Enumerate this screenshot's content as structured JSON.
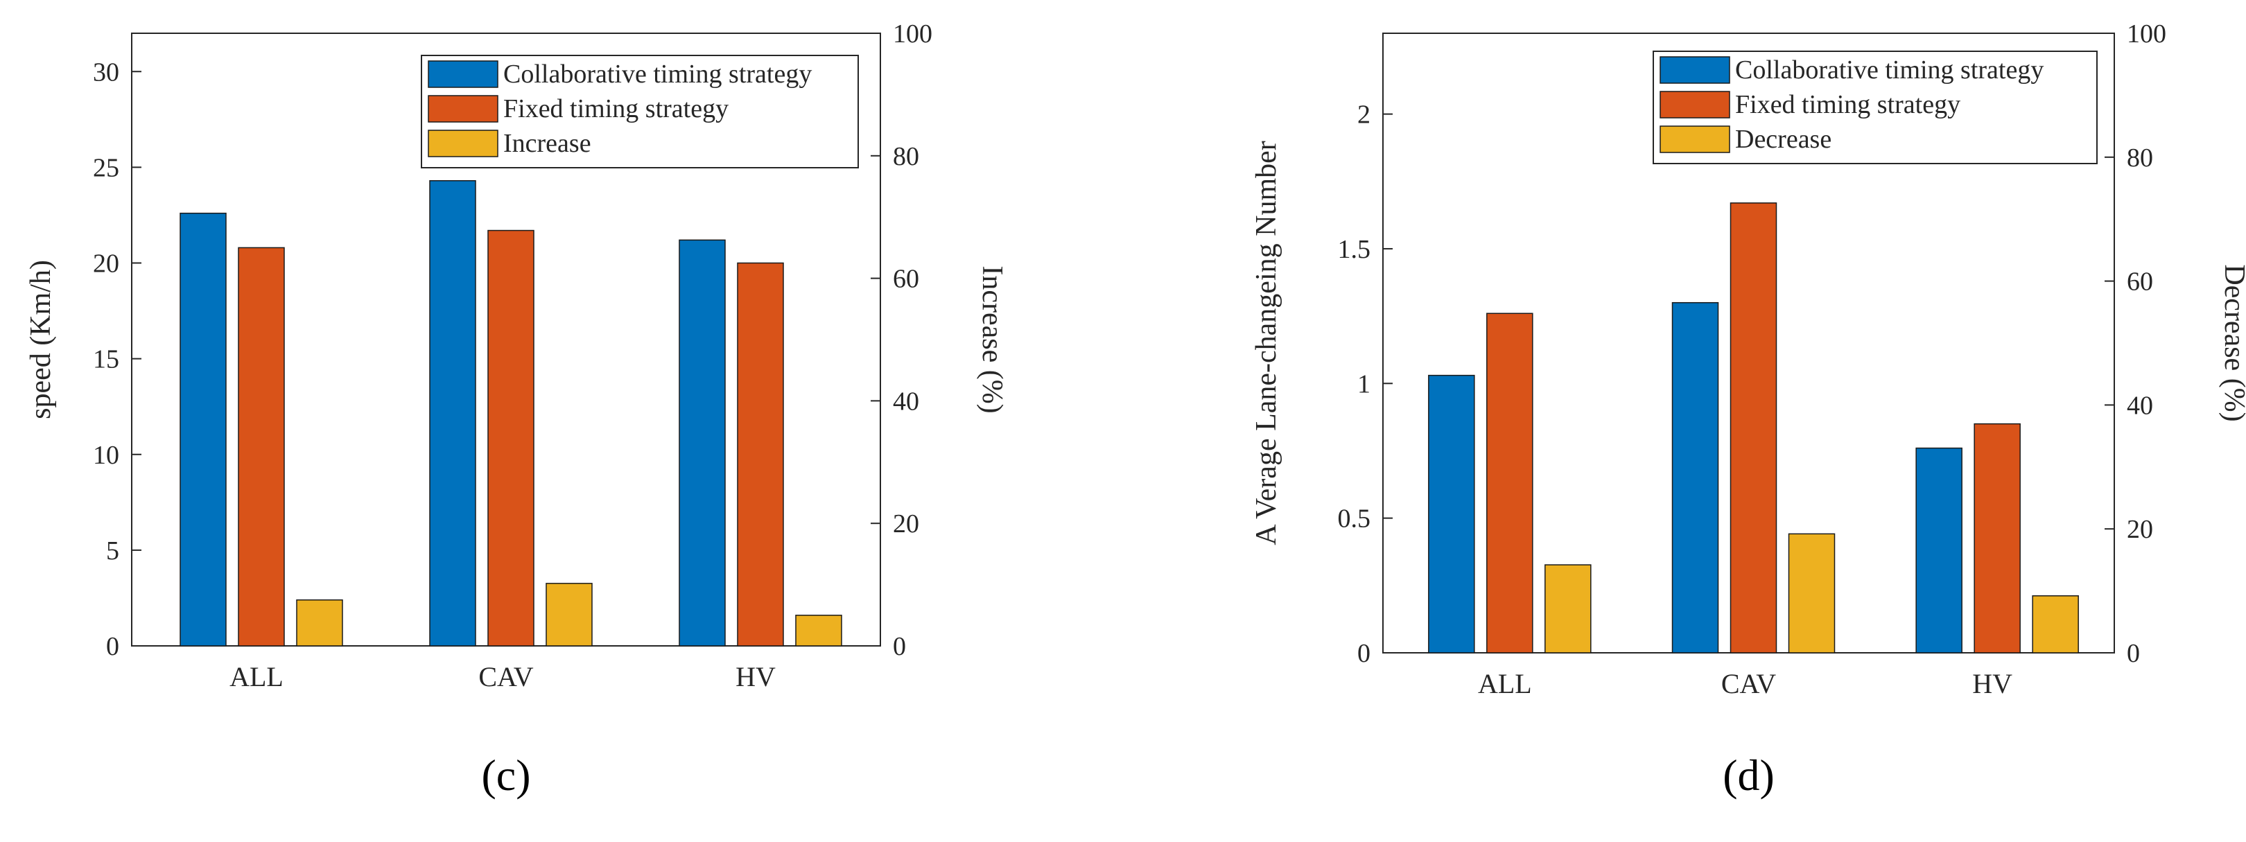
{
  "chart_data": [
    {
      "type": "bar",
      "panel_label": "(c)",
      "categories": [
        "ALL",
        "CAV",
        "HV"
      ],
      "series": [
        {
          "name": "Collaborative timing strategy",
          "axis": "left",
          "color": "#0072BD",
          "values": [
            22.6,
            24.3,
            21.2
          ]
        },
        {
          "name": "Fixed timing strategy",
          "axis": "left",
          "color": "#D95319",
          "values": [
            20.8,
            21.7,
            20.0
          ]
        },
        {
          "name": "Increase",
          "axis": "right",
          "color": "#EDB120",
          "values": [
            7.5,
            10.2,
            5.0
          ]
        }
      ],
      "ylabel": "speed (Km/h)",
      "ylim": [
        0,
        32
      ],
      "yticks": [
        "0",
        "5",
        "10",
        "15",
        "20",
        "25",
        "30"
      ],
      "y2label": "Increase (%)",
      "y2lim": [
        0,
        100
      ],
      "y2ticks": [
        "0",
        "20",
        "40",
        "60",
        "80",
        "100"
      ],
      "legend_position": "top-right"
    },
    {
      "type": "bar",
      "panel_label": "(d)",
      "categories": [
        "ALL",
        "CAV",
        "HV"
      ],
      "series": [
        {
          "name": "Collaborative timing strategy",
          "axis": "left",
          "color": "#0072BD",
          "values": [
            1.03,
            1.3,
            0.76
          ]
        },
        {
          "name": "Fixed timing strategy",
          "axis": "left",
          "color": "#D95319",
          "values": [
            1.26,
            1.67,
            0.85
          ]
        },
        {
          "name": "Decrease",
          "axis": "right",
          "color": "#EDB120",
          "values": [
            14.2,
            19.2,
            9.2
          ]
        }
      ],
      "ylabel": "A Verage Lane-changeing Number",
      "ylim": [
        0,
        2.3
      ],
      "yticks": [
        "0",
        "0.5",
        "1",
        "1.5",
        "2"
      ],
      "y2label": "Decrease (%)",
      "y2lim": [
        0,
        100
      ],
      "y2ticks": [
        "0",
        "20",
        "40",
        "60",
        "80",
        "100"
      ],
      "legend_position": "top-right"
    }
  ]
}
